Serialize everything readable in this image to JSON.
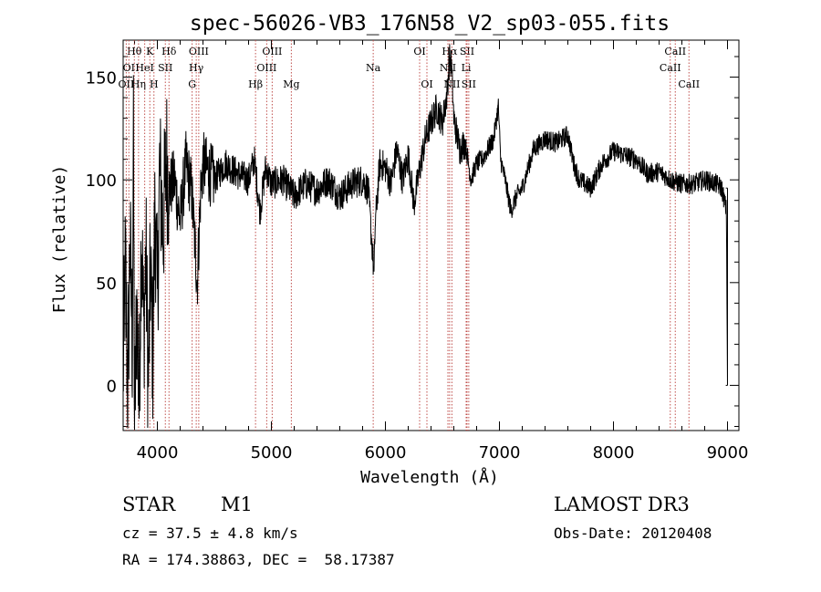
{
  "chart_data": {
    "type": "line",
    "title": "spec-56026-VB3_176N58_V2_sp03-055.fits",
    "xlabel": "Wavelength (Å)",
    "ylabel": "Flux (relative)",
    "xlim": [
      3700,
      9100
    ],
    "ylim": [
      -22,
      168
    ],
    "xticks": [
      4000,
      5000,
      6000,
      7000,
      8000,
      9000
    ],
    "yticks": [
      0,
      50,
      100,
      150
    ],
    "x_minor_step": 200,
    "y_minor_step": 10,
    "series": [
      {
        "name": "flux",
        "color": "#000000",
        "anchors": [
          [
            3700,
            5
          ],
          [
            3720,
            60
          ],
          [
            3740,
            -5
          ],
          [
            3760,
            70
          ],
          [
            3780,
            20
          ],
          [
            3790,
            115
          ],
          [
            3800,
            -20
          ],
          [
            3820,
            40
          ],
          [
            3840,
            -10
          ],
          [
            3860,
            80
          ],
          [
            3880,
            25
          ],
          [
            3900,
            65
          ],
          [
            3920,
            0
          ],
          [
            3940,
            55
          ],
          [
            3960,
            15
          ],
          [
            3980,
            90
          ],
          [
            4000,
            40
          ],
          [
            4020,
            105
          ],
          [
            4050,
            75
          ],
          [
            4080,
            112
          ],
          [
            4100,
            95
          ],
          [
            4150,
            100
          ],
          [
            4200,
            80
          ],
          [
            4250,
            108
          ],
          [
            4300,
            95
          ],
          [
            4350,
            50
          ],
          [
            4380,
            95
          ],
          [
            4400,
            108
          ],
          [
            4500,
            100
          ],
          [
            4600,
            108
          ],
          [
            4700,
            103
          ],
          [
            4800,
            100
          ],
          [
            4850,
            110
          ],
          [
            4900,
            85
          ],
          [
            4950,
            106
          ],
          [
            5000,
            98
          ],
          [
            5100,
            100
          ],
          [
            5200,
            92
          ],
          [
            5300,
            98
          ],
          [
            5400,
            95
          ],
          [
            5500,
            100
          ],
          [
            5600,
            92
          ],
          [
            5700,
            98
          ],
          [
            5800,
            100
          ],
          [
            5850,
            95
          ],
          [
            5890,
            62
          ],
          [
            5900,
            52
          ],
          [
            5910,
            78
          ],
          [
            5950,
            108
          ],
          [
            6000,
            106
          ],
          [
            6050,
            98
          ],
          [
            6100,
            115
          ],
          [
            6150,
            100
          ],
          [
            6200,
            112
          ],
          [
            6250,
            88
          ],
          [
            6300,
            105
          ],
          [
            6350,
            120
          ],
          [
            6400,
            128
          ],
          [
            6450,
            135
          ],
          [
            6500,
            128
          ],
          [
            6540,
            142
          ],
          [
            6563,
            160
          ],
          [
            6580,
            155
          ],
          [
            6600,
            130
          ],
          [
            6650,
            115
          ],
          [
            6700,
            118
          ],
          [
            6750,
            100
          ],
          [
            6800,
            108
          ],
          [
            6850,
            110
          ],
          [
            6900,
            115
          ],
          [
            6950,
            120
          ],
          [
            6990,
            136
          ],
          [
            7010,
            110
          ],
          [
            7050,
            100
          ],
          [
            7100,
            85
          ],
          [
            7150,
            92
          ],
          [
            7200,
            96
          ],
          [
            7300,
            115
          ],
          [
            7400,
            120
          ],
          [
            7500,
            118
          ],
          [
            7600,
            122
          ],
          [
            7650,
            108
          ],
          [
            7700,
            100
          ],
          [
            7800,
            96
          ],
          [
            7900,
            108
          ],
          [
            8000,
            114
          ],
          [
            8100,
            112
          ],
          [
            8200,
            110
          ],
          [
            8300,
            103
          ],
          [
            8400,
            104
          ],
          [
            8500,
            100
          ],
          [
            8600,
            98
          ],
          [
            8700,
            98
          ],
          [
            8800,
            100
          ],
          [
            8900,
            98
          ],
          [
            8950,
            96
          ],
          [
            8990,
            85
          ],
          [
            9000,
            0
          ]
        ]
      }
    ],
    "line_markers": [
      {
        "label": "Hθ",
        "wavelength": 3798,
        "row": 1
      },
      {
        "label": "OI",
        "wavelength": 3750,
        "row": 2
      },
      {
        "label": "OII",
        "wavelength": 3727,
        "row": 3
      },
      {
        "label": "K",
        "wavelength": 3934,
        "row": 1
      },
      {
        "label": "HeI",
        "wavelength": 3889,
        "row": 2
      },
      {
        "label": "Hη",
        "wavelength": 3835,
        "row": 3
      },
      {
        "label": "H",
        "wavelength": 3970,
        "row": 3
      },
      {
        "label": "Hδ",
        "wavelength": 4102,
        "row": 1
      },
      {
        "label": "SII",
        "wavelength": 4070,
        "row": 2
      },
      {
        "label": "OIII",
        "wavelength": 4363,
        "row": 1
      },
      {
        "label": "Hγ",
        "wavelength": 4341,
        "row": 2
      },
      {
        "label": "G",
        "wavelength": 4305,
        "row": 3
      },
      {
        "label": "OIII",
        "wavelength": 5007,
        "row": 1
      },
      {
        "label": "OIII",
        "wavelength": 4959,
        "row": 2
      },
      {
        "label": "Hβ",
        "wavelength": 4861,
        "row": 3
      },
      {
        "label": "Mg",
        "wavelength": 5175,
        "row": 3
      },
      {
        "label": "Na",
        "wavelength": 5893,
        "row": 2
      },
      {
        "label": "OI",
        "wavelength": 6300,
        "row": 1
      },
      {
        "label": "OI",
        "wavelength": 6364,
        "row": 3
      },
      {
        "label": "Hα",
        "wavelength": 6563,
        "row": 1
      },
      {
        "label": "SII",
        "wavelength": 6716,
        "row": 1
      },
      {
        "label": "NII",
        "wavelength": 6548,
        "row": 2
      },
      {
        "label": "Li",
        "wavelength": 6708,
        "row": 2
      },
      {
        "label": "NII",
        "wavelength": 6583,
        "row": 3
      },
      {
        "label": "SII",
        "wavelength": 6731,
        "row": 3
      },
      {
        "label": "CaII",
        "wavelength": 8542,
        "row": 1
      },
      {
        "label": "CaII",
        "wavelength": 8498,
        "row": 2
      },
      {
        "label": "CaII",
        "wavelength": 8662,
        "row": 3
      }
    ],
    "colors": {
      "axes": "#000000",
      "line": "#000000",
      "marker": "#c0504d"
    }
  },
  "info": {
    "object_class": "STAR",
    "subclass": "M1",
    "survey": "LAMOST DR3",
    "cz": "cz = 37.5 ± 4.8 km/s",
    "obs_date": "Obs-Date: 20120408",
    "radec": "RA = 174.38863, DEC =  58.17387"
  }
}
